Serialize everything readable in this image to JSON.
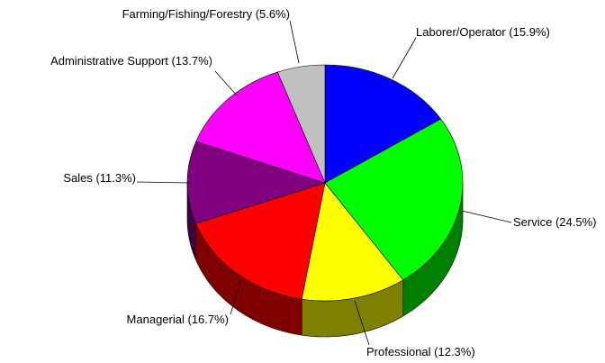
{
  "chart_data": {
    "type": "pie",
    "title": "",
    "style": "3d",
    "slices": [
      {
        "label": "Laborer/Operator",
        "value": 15.9,
        "display": "Laborer/Operator (15.9%)",
        "color": "#0000FF"
      },
      {
        "label": "Service",
        "value": 24.5,
        "display": "Service (24.5%)",
        "color": "#00FF00"
      },
      {
        "label": "Professional",
        "value": 12.3,
        "display": "Professional (12.3%)",
        "color": "#FFFF00"
      },
      {
        "label": "Managerial",
        "value": 16.7,
        "display": "Managerial (16.7%)",
        "color": "#FF0000"
      },
      {
        "label": "Sales",
        "value": 11.3,
        "display": "Sales (11.3%)",
        "color": "#800080"
      },
      {
        "label": "Administrative Support",
        "value": 13.7,
        "display": "Administrative Support (13.7%)",
        "color": "#FF00FF"
      },
      {
        "label": "Farming/Fishing/Forestry",
        "value": 5.6,
        "display": "Farming/Fishing/Forestry (5.6%)",
        "color": "#C0C0C0"
      }
    ]
  }
}
